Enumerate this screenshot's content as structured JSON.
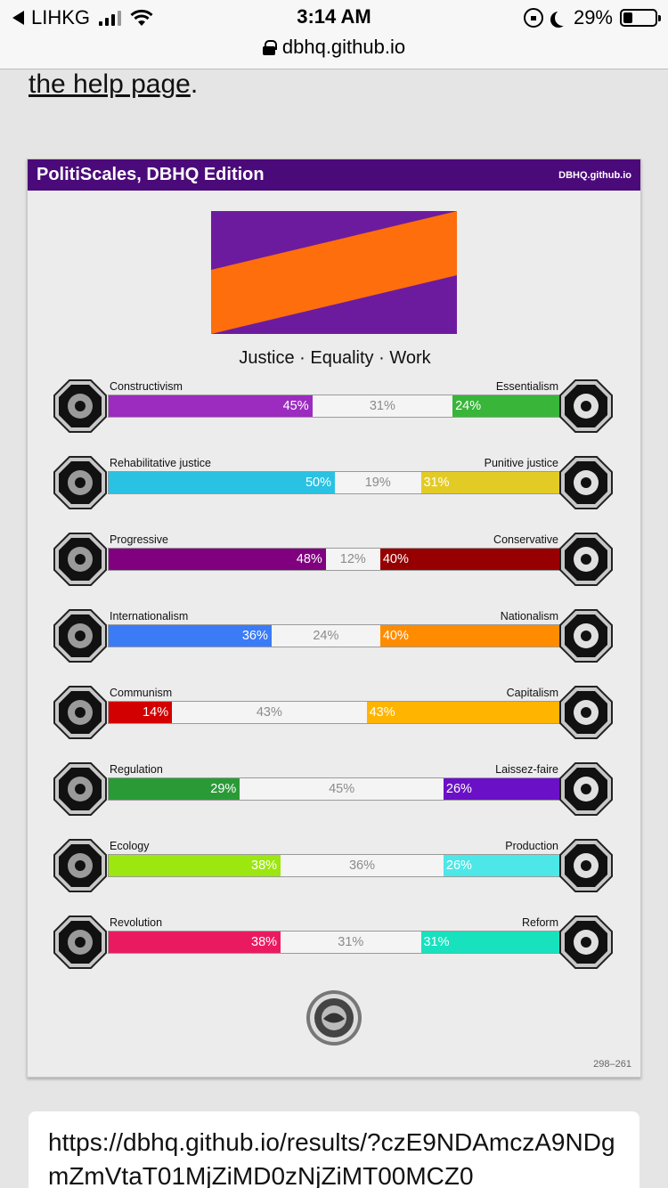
{
  "status_bar": {
    "carrier": "LIHKG",
    "time": "3:14 AM",
    "battery": "29%"
  },
  "address_bar": {
    "url": "dbhq.github.io"
  },
  "help_link": {
    "text": "the help page",
    "suffix": "."
  },
  "card": {
    "title": "PolitiScales, DBHQ Edition",
    "site": "DBHQ.github.io",
    "slogan": "Justice · Equality · Work",
    "code": "298–261",
    "flag_colors": [
      "#6d1b9e",
      "#ff6e0c"
    ]
  },
  "axes": [
    {
      "left": "Constructivism",
      "right": "Essentialism",
      "left_pct": 45,
      "center_pct": 31,
      "right_pct": 24,
      "left_color": "#9b2cbf",
      "right_color": "#39b53a",
      "left_icon": "eye-icon",
      "right_icon": "dna-icon"
    },
    {
      "left": "Rehabilitative justice",
      "right": "Punitive justice",
      "left_pct": 50,
      "center_pct": 19,
      "right_pct": 31,
      "left_color": "#29c2e2",
      "right_color": "#e3cb26",
      "left_icon": "handshake-icon",
      "right_icon": "prison-bars-icon"
    },
    {
      "left": "Progressive",
      "right": "Conservative",
      "left_pct": 48,
      "center_pct": 12,
      "right_pct": 40,
      "left_color": "#800080",
      "right_color": "#960000",
      "left_icon": "rocket-icon",
      "right_icon": "quill-icon"
    },
    {
      "left": "Internationalism",
      "right": "Nationalism",
      "left_pct": 36,
      "center_pct": 24,
      "right_pct": 40,
      "left_color": "#3b7bf6",
      "right_color": "#ff8c00",
      "left_icon": "globe-icon",
      "right_icon": "flag-icon"
    },
    {
      "left": "Communism",
      "right": "Capitalism",
      "left_pct": 14,
      "center_pct": 43,
      "right_pct": 43,
      "left_color": "#d20000",
      "right_color": "#ffb400",
      "left_icon": "hammer-sickle-icon",
      "right_icon": "money-bag-icon"
    },
    {
      "left": "Regulation",
      "right": "Laissez-faire",
      "left_pct": 29,
      "center_pct": 45,
      "right_pct": 26,
      "left_color": "#2a9a37",
      "right_color": "#6a10c6",
      "left_icon": "scale-icon",
      "right_icon": "butterfly-icon"
    },
    {
      "left": "Ecology",
      "right": "Production",
      "left_pct": 38,
      "center_pct": 36,
      "right_pct": 26,
      "left_color": "#9ce70f",
      "right_color": "#4de7e8",
      "left_icon": "leaf-icon",
      "right_icon": "factory-icon"
    },
    {
      "left": "Revolution",
      "right": "Reform",
      "left_pct": 38,
      "center_pct": 31,
      "right_pct": 31,
      "left_color": "#ea1a61",
      "right_color": "#17e2bd",
      "left_icon": "fist-icon",
      "right_icon": "ballot-icon"
    }
  ],
  "results_link": {
    "text": "https://dbhq.github.io/results/?czE9NDAmczA9NDgmZmVtaT01MjZiMD0zNjZiMT00MCZ0"
  }
}
